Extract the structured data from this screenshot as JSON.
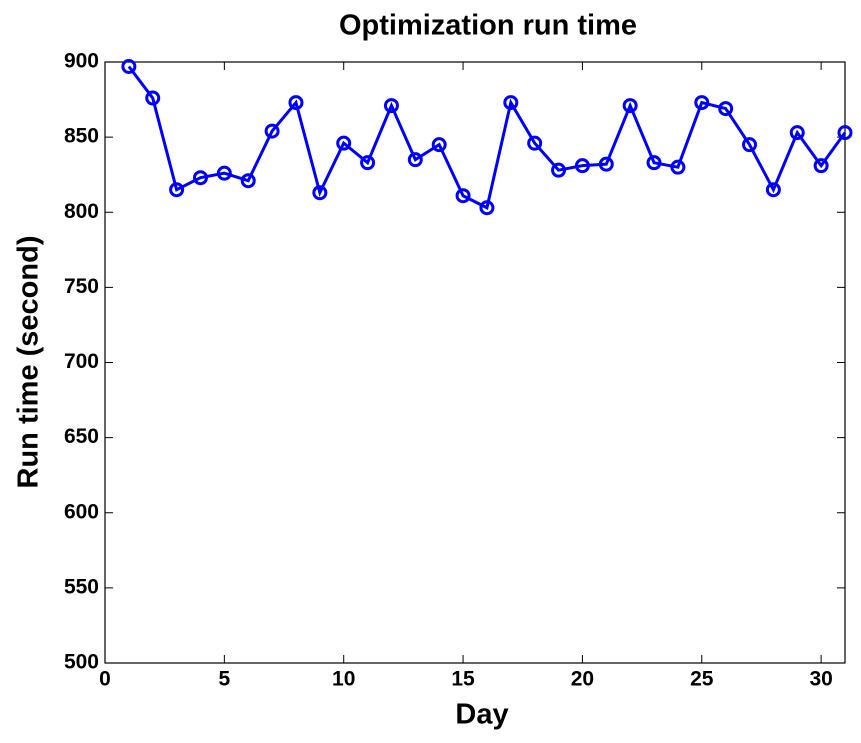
{
  "chart_data": {
    "type": "line",
    "title": "Optimization run time",
    "x_label": "Day",
    "y_label": "Run time (second)",
    "x": [
      1,
      2,
      3,
      4,
      5,
      6,
      7,
      8,
      9,
      10,
      11,
      12,
      13,
      14,
      15,
      16,
      17,
      18,
      19,
      20,
      21,
      22,
      23,
      24,
      25,
      26,
      27,
      28,
      29,
      30,
      31
    ],
    "series": [
      {
        "name": "Run time",
        "color": "#0000ff",
        "values": [
          897,
          876,
          815,
          823,
          826,
          821,
          854,
          873,
          813,
          846,
          833,
          871,
          835,
          845,
          811,
          803,
          873,
          846,
          828,
          831,
          832,
          871,
          833,
          830,
          873,
          869,
          845,
          815,
          853,
          831,
          853
        ]
      }
    ],
    "xlim": [
      0,
      31
    ],
    "xticks": [
      0,
      5,
      10,
      15,
      20,
      25,
      30
    ],
    "ylim": [
      500,
      900
    ],
    "yticks": [
      500,
      550,
      600,
      650,
      700,
      750,
      800,
      850,
      900
    ]
  }
}
